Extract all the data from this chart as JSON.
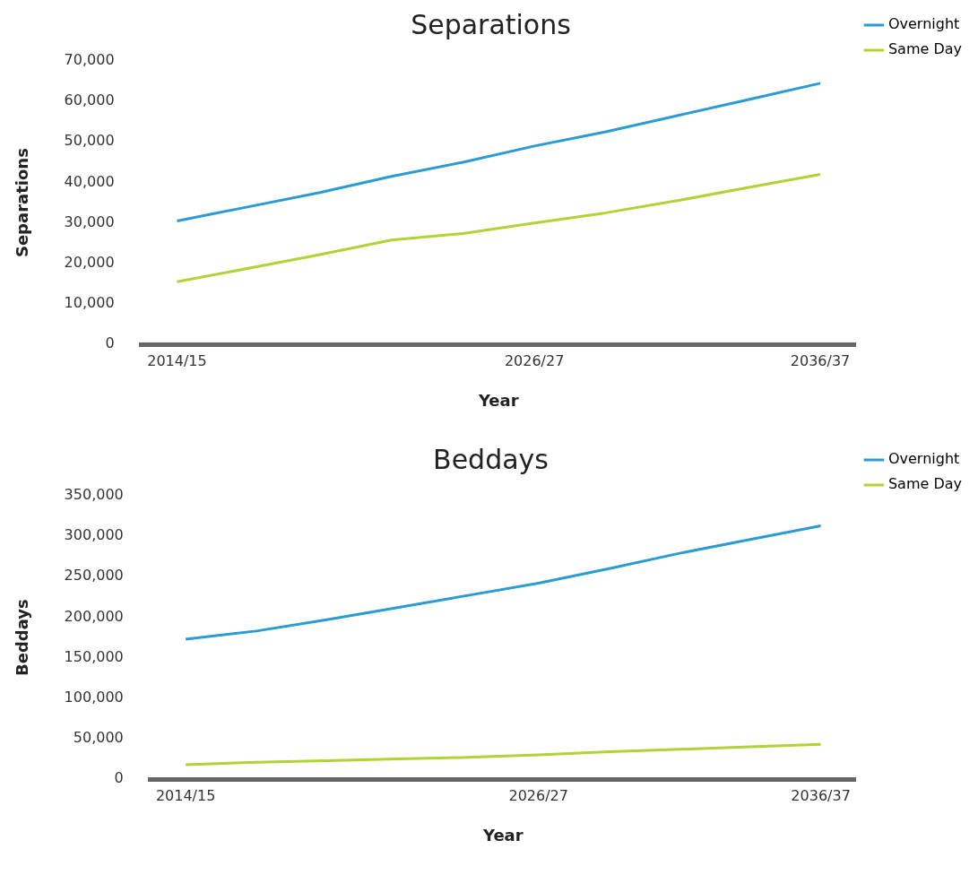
{
  "chart_data": [
    {
      "type": "line",
      "title": "Separations",
      "xlabel": "Year",
      "ylabel": "Separations",
      "categories": [
        "2014/15",
        null,
        null,
        null,
        null,
        "2026/27",
        null,
        null,
        null,
        "2036/37"
      ],
      "series": [
        {
          "name": "Overnight",
          "color": "#2a9bd3",
          "values": [
            30500,
            34000,
            37500,
            41500,
            45000,
            49000,
            52500,
            56500,
            60500,
            64500
          ]
        },
        {
          "name": "Same Day",
          "color": "#b2d235",
          "values": [
            15500,
            18800,
            22200,
            25800,
            27400,
            30000,
            32500,
            35500,
            38800,
            42000
          ]
        }
      ],
      "ylim": [
        0,
        70000
      ],
      "yticks": [
        {
          "value": 0,
          "label": "0"
        },
        {
          "value": 10000,
          "label": "10,000"
        },
        {
          "value": 20000,
          "label": "20,000"
        },
        {
          "value": 30000,
          "label": "30,000"
        },
        {
          "value": 40000,
          "label": "40,000"
        },
        {
          "value": 50000,
          "label": "50,000"
        },
        {
          "value": 60000,
          "label": "60,000"
        },
        {
          "value": 70000,
          "label": "70,000"
        }
      ],
      "grid": false,
      "legend": "top right",
      "marker": "none",
      "line_style": "solid"
    },
    {
      "type": "line",
      "title": "Beddays",
      "xlabel": "Year",
      "ylabel": "Beddays",
      "categories": [
        "2014/15",
        null,
        null,
        null,
        null,
        "2026/27",
        null,
        null,
        null,
        "2036/37"
      ],
      "series": [
        {
          "name": "Overnight",
          "color": "#2a9bd3",
          "values": [
            173000,
            183000,
            197000,
            212000,
            227000,
            242000,
            260000,
            279000,
            296000,
            313000
          ]
        },
        {
          "name": "Same Day",
          "color": "#b2d235",
          "values": [
            18000,
            21000,
            23000,
            25000,
            27000,
            30000,
            34000,
            37000,
            40000,
            43000
          ]
        }
      ],
      "ylim": [
        0,
        350000
      ],
      "yticks": [
        {
          "value": 0,
          "label": "0"
        },
        {
          "value": 50000,
          "label": "50,000"
        },
        {
          "value": 100000,
          "label": "100,000"
        },
        {
          "value": 150000,
          "label": "150,000"
        },
        {
          "value": 200000,
          "label": "200,000"
        },
        {
          "value": 250000,
          "label": "250,000"
        },
        {
          "value": 300000,
          "label": "300,000"
        },
        {
          "value": 350000,
          "label": "350,000"
        }
      ],
      "grid": false,
      "legend": "top right",
      "marker": "none",
      "line_style": "solid"
    }
  ]
}
